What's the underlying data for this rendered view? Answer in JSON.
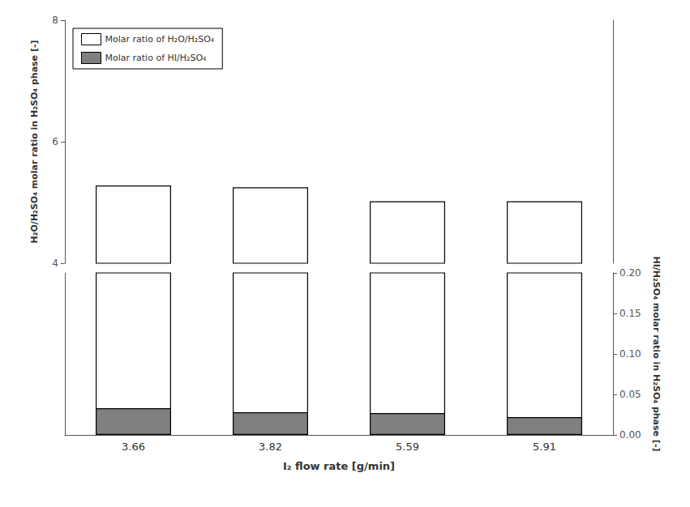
{
  "chart_data": {
    "type": "bar",
    "categories": [
      "3.66",
      "3.82",
      "5.59",
      "5.91"
    ],
    "xlabel": "I₂ flow rate [g/min]",
    "ylabel": "H₂O/H₂SO₄ molar ratio in H₂SO₄ phase [-]",
    "y2label": "HI/H₂SO₄ molar ratio in H₂SO₄ phase [-]",
    "series": [
      {
        "name": "Molar ratio of H₂O/H₂SO₄",
        "color": "white",
        "values": [
          5.28,
          5.25,
          5.02,
          5.02
        ]
      },
      {
        "name": "Molar ratio of HI/H₂SO₄",
        "color": "#808080",
        "values": [
          0.033,
          0.028,
          0.027,
          0.022
        ],
        "axis": "y2"
      }
    ],
    "ylim": [
      4.0,
      8.0
    ],
    "yticks": [
      4,
      6,
      8
    ],
    "y2lim": [
      0.0,
      0.2
    ],
    "y2ticks": [
      {
        "value": 0,
        "label": "0.00"
      },
      0.05,
      {
        "value": 0.1,
        "label": "0.10"
      },
      0.15,
      {
        "value": 0.2,
        "label": "0.20"
      }
    ],
    "legend": "upper left",
    "grid": false
  }
}
